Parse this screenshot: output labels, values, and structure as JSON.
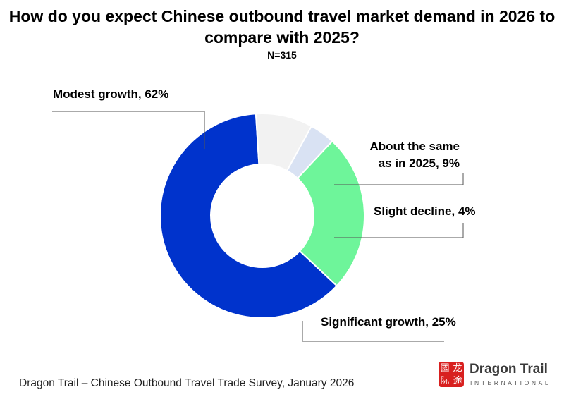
{
  "chart_data": {
    "type": "pie",
    "title": "How do you expect Chinese outbound travel market demand in 2026 to compare with 2025?",
    "subtitle": "N=315",
    "slices": [
      {
        "label": "Modest growth, 62%",
        "value": 62,
        "color": "#0033cc"
      },
      {
        "label": "About the same as in 2025, 9%",
        "value": 9,
        "color": "#f2f2f2"
      },
      {
        "label": "Slight decline, 4%",
        "value": 4,
        "color": "#d9e2f3"
      },
      {
        "label": "Significant growth, 25%",
        "value": 25,
        "color": "#6ef59a"
      }
    ],
    "label_lines": {
      "about_same": [
        "About the same",
        "as in 2025, 9%"
      ]
    }
  },
  "footer": {
    "source": "Dragon Trail – Chinese Outbound Travel Trade Survey, January 2026"
  },
  "logo": {
    "name": "Dragon Trail",
    "sub": "INTERNATIONAL",
    "mark_chars": [
      "國",
      "龙",
      "际",
      "途"
    ],
    "mark_color": "#d8201f"
  }
}
